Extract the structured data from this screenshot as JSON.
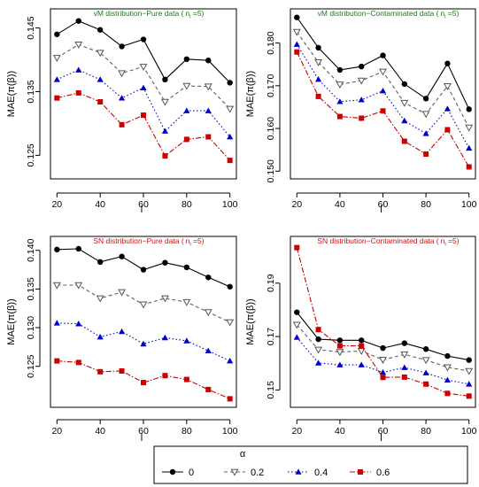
{
  "colors": {
    "series": [
      "#000000",
      "#606060",
      "#0000cc",
      "#cc0000"
    ]
  },
  "legend": {
    "title": "α",
    "labels": [
      "0",
      "0.2",
      "0.4",
      "0.6"
    ],
    "position": "bottom-center"
  },
  "chart_data": [
    {
      "type": "line",
      "title": "vM distribution−Pure data (",
      "title_sub_label": "n",
      "title_sub_index": "i",
      "title_suffix": " =5)",
      "title_color": "#1a7a1a",
      "xlabel": "l",
      "ylabel": "MAE(π(β))",
      "x": [
        20,
        30,
        40,
        50,
        60,
        70,
        80,
        90,
        100
      ],
      "xlim": [
        17,
        103
      ],
      "xticks": [
        "20",
        "40",
        "60",
        "80",
        "100"
      ],
      "ylim": [
        0.1213,
        0.148
      ],
      "yticks": [
        "0.125",
        "0.135",
        "0.145"
      ],
      "series": [
        {
          "name": "0",
          "values": [
            0.144,
            0.1461,
            0.1447,
            0.1421,
            0.1432,
            0.1369,
            0.1401,
            0.1399,
            0.1364
          ]
        },
        {
          "name": "0.2",
          "values": [
            0.1403,
            0.1424,
            0.1411,
            0.1379,
            0.1389,
            0.1334,
            0.1359,
            0.1358,
            0.1323
          ]
        },
        {
          "name": "0.4",
          "values": [
            0.1369,
            0.1384,
            0.1369,
            0.134,
            0.1356,
            0.1288,
            0.132,
            0.132,
            0.1279
          ]
        },
        {
          "name": "0.6",
          "values": [
            0.134,
            0.1348,
            0.1334,
            0.1298,
            0.1313,
            0.1249,
            0.1275,
            0.1279,
            0.1242
          ]
        }
      ]
    },
    {
      "type": "line",
      "title": "vM distribution−Contaminated data (",
      "title_sub_label": "n",
      "title_sub_index": "i",
      "title_suffix": " =5)",
      "title_color": "#1a7a1a",
      "xlabel": "l",
      "ylabel": "MAE(π(β))",
      "x": [
        20,
        30,
        40,
        50,
        60,
        70,
        80,
        90,
        100
      ],
      "xlim": [
        17,
        103
      ],
      "xticks": [
        "20",
        "40",
        "60",
        "80",
        "100"
      ],
      "ylim": [
        0.1482,
        0.188
      ],
      "yticks": [
        "0.150",
        "0.160",
        "0.170",
        "0.180"
      ],
      "series": [
        {
          "name": "0",
          "values": [
            0.186,
            0.1789,
            0.1737,
            0.1745,
            0.1771,
            0.1704,
            0.167,
            0.1752,
            0.1645
          ]
        },
        {
          "name": "0.2",
          "values": [
            0.1826,
            0.1755,
            0.1703,
            0.1712,
            0.1733,
            0.166,
            0.1634,
            0.1699,
            0.1602
          ]
        },
        {
          "name": "0.4",
          "values": [
            0.1797,
            0.1715,
            0.1663,
            0.1667,
            0.1688,
            0.1618,
            0.1588,
            0.1646,
            0.1554
          ]
        },
        {
          "name": "0.6",
          "values": [
            0.1779,
            0.1675,
            0.1628,
            0.1624,
            0.1641,
            0.157,
            0.154,
            0.1597,
            0.151
          ]
        }
      ]
    },
    {
      "type": "line",
      "title": "SN distribution−Pure data (",
      "title_sub_label": "n",
      "title_sub_index": "i",
      "title_suffix": " =5)",
      "title_color": "#cc1111",
      "xlabel": "l",
      "ylabel": "MAE(π(β))",
      "x": [
        20,
        30,
        40,
        50,
        60,
        70,
        80,
        90,
        100
      ],
      "xlim": [
        17,
        103
      ],
      "xticks": [
        "20",
        "40",
        "60",
        "80",
        "100"
      ],
      "ylim": [
        0.1197,
        0.1418
      ],
      "yticks": [
        "0.125",
        "0.130",
        "0.135",
        "0.140"
      ],
      "series": [
        {
          "name": "0",
          "values": [
            0.1401,
            0.1402,
            0.1385,
            0.1392,
            0.1375,
            0.1384,
            0.1378,
            0.1365,
            0.1353
          ]
        },
        {
          "name": "0.2",
          "values": [
            0.1355,
            0.1355,
            0.1338,
            0.1346,
            0.133,
            0.1338,
            0.1333,
            0.132,
            0.1307
          ]
        },
        {
          "name": "0.4",
          "values": [
            0.1306,
            0.1305,
            0.1288,
            0.1295,
            0.1279,
            0.1287,
            0.1283,
            0.127,
            0.1257
          ]
        },
        {
          "name": "0.6",
          "values": [
            0.1257,
            0.1255,
            0.1243,
            0.1244,
            0.1229,
            0.1238,
            0.1233,
            0.122,
            0.1208
          ]
        }
      ]
    },
    {
      "type": "line",
      "title": "SN distribution−Contaminated data (",
      "title_sub_label": "n",
      "title_sub_index": "i",
      "title_suffix": " =5)",
      "title_color": "#cc1111",
      "xlabel": "l",
      "ylabel": "MAE(π(β))",
      "x": [
        20,
        30,
        40,
        50,
        60,
        70,
        80,
        90,
        100
      ],
      "xlim": [
        17,
        103
      ],
      "xticks": [
        "20",
        "40",
        "60",
        "80",
        "100"
      ],
      "ylim": [
        0.1435,
        0.2075
      ],
      "yticks": [
        "0.15",
        "0.17",
        "0.19"
      ],
      "series": [
        {
          "name": "0",
          "values": [
            0.1791,
            0.169,
            0.1686,
            0.1686,
            0.1657,
            0.1675,
            0.1653,
            0.1627,
            0.1612
          ]
        },
        {
          "name": "0.2",
          "values": [
            0.1744,
            0.1651,
            0.1642,
            0.1646,
            0.1613,
            0.1633,
            0.1612,
            0.1585,
            0.1571
          ]
        },
        {
          "name": "0.4",
          "values": [
            0.1697,
            0.1601,
            0.1594,
            0.1594,
            0.1566,
            0.1584,
            0.1564,
            0.1537,
            0.1522
          ]
        },
        {
          "name": "0.6",
          "values": [
            0.2033,
            0.1726,
            0.1665,
            0.1665,
            0.1547,
            0.1548,
            0.1522,
            0.1487,
            0.1477
          ]
        }
      ]
    }
  ]
}
